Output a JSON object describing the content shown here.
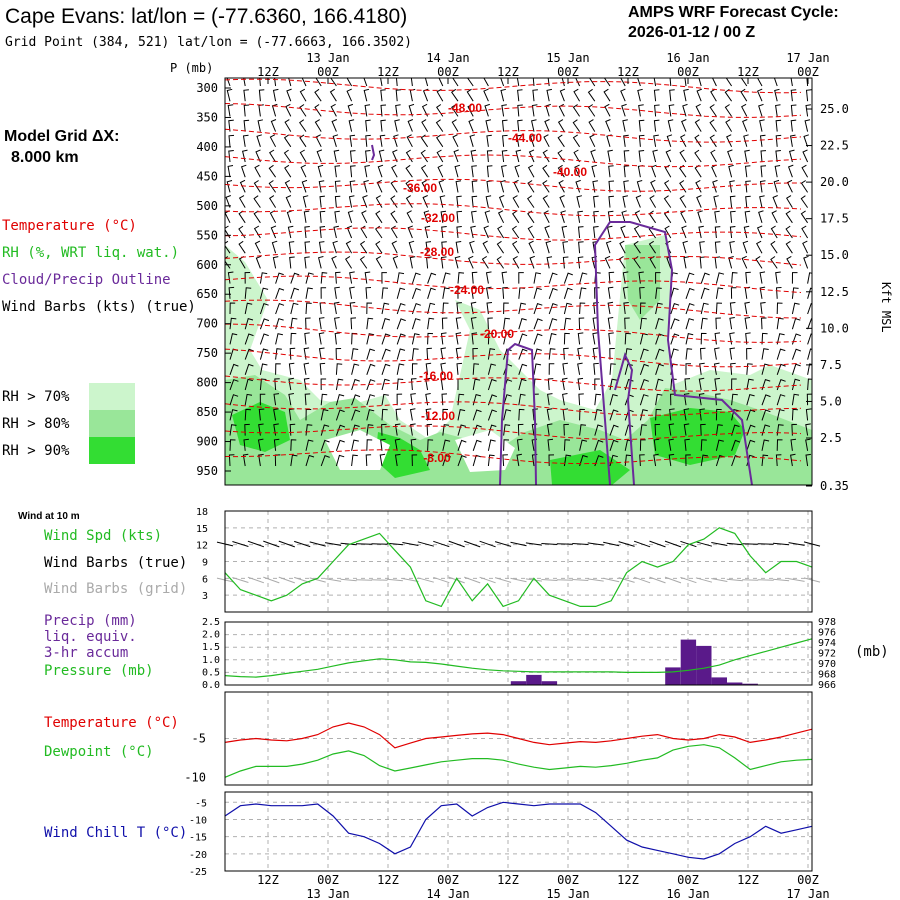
{
  "header": {
    "title": "Cape Evans:  lat/lon = (-77.6360, 166.4180)",
    "grid_point": "Grid Point (384, 521) lat/lon = (-77.6663, 166.3502)",
    "cycle_label": "AMPS WRF Forecast Cycle:",
    "cycle_value": "2026-01-12 / 00  Z"
  },
  "left_panel": {
    "model_grid_line1": "Model Grid ΔX:",
    "model_grid_line2": "8.000 km",
    "legend_temperature": "Temperature (°C)",
    "legend_rh": "RH (%, WRT liq. wat.)",
    "legend_cloud": "Cloud/Precip Outline",
    "legend_wind": "Wind Barbs (kts) (true)",
    "rh_gt70": "RH > 70%",
    "rh_gt80": "RH > 80%",
    "rh_gt90": "RH > 90%"
  },
  "time_axis": {
    "top_labels": [
      {
        "hour": "12Z",
        "date": ""
      },
      {
        "hour": "00Z",
        "date": "13 Jan"
      },
      {
        "hour": "12Z",
        "date": ""
      },
      {
        "hour": "00Z",
        "date": "14 Jan"
      },
      {
        "hour": "12Z",
        "date": ""
      },
      {
        "hour": "00Z",
        "date": "15 Jan"
      },
      {
        "hour": "12Z",
        "date": ""
      },
      {
        "hour": "00Z",
        "date": "16 Jan"
      },
      {
        "hour": "12Z",
        "date": ""
      },
      {
        "hour": "00Z",
        "date": "17 Jan"
      }
    ]
  },
  "colors": {
    "temperature": "#e00000",
    "rh70": "#ccf5cc",
    "rh80": "#99e699",
    "rh90": "#33dd33",
    "cloud": "#6a2a9a",
    "wind_speed": "#22bb22",
    "wind_grid": "#aaaaaa",
    "precip": "#5a1a8a",
    "pressure": "#22bb22",
    "dewpoint": "#22bb22",
    "windchill": "#1010aa"
  },
  "chart_data": [
    {
      "type": "contour",
      "name": "cross-section",
      "ylabel_left": "P (mb)",
      "ylabel_right": "Kft MSL",
      "pressure_ticks": [
        "300",
        "350",
        "400",
        "450",
        "500",
        "550",
        "600",
        "650",
        "700",
        "750",
        "800",
        "850",
        "900",
        "950"
      ],
      "kft_ticks": [
        "25.0",
        "22.5",
        "20.0",
        "17.5",
        "15.0",
        "12.5",
        "10.0",
        "7.5",
        "5.0",
        "2.5",
        "0.35"
      ],
      "temperature_contours": [
        "-48.00",
        "-44.00",
        "-40.00",
        "-36.00",
        "-32.00",
        "-28.00",
        "-24.00",
        "-20.00",
        "-16.00",
        "-12.00",
        "-8.00"
      ]
    },
    {
      "type": "line",
      "name": "wind-10m",
      "title": "Wind at 10 m",
      "labels": [
        "Wind Spd (kts)",
        "Wind Barbs (true)",
        "Wind Barbs (grid)"
      ],
      "yticks": [
        "18",
        "15",
        "12",
        "9",
        "6",
        "3"
      ],
      "ylim": [
        0,
        18
      ],
      "wind_speed": [
        7,
        4,
        3,
        2,
        3,
        5,
        6,
        9,
        12,
        13,
        14,
        11,
        8,
        2,
        1,
        6,
        2,
        5,
        1,
        2,
        6,
        3,
        2,
        1,
        1,
        2,
        7,
        9,
        8,
        9,
        12,
        13,
        15,
        14,
        10,
        7,
        9,
        9,
        8
      ]
    },
    {
      "type": "bar",
      "name": "precip-pressure",
      "labels": [
        "Precip (mm)",
        "liq. equiv.",
        "3-hr accum",
        "Pressure (mb)"
      ],
      "right_unit": "(mb)",
      "yticks_left": [
        "2.5",
        "2.0",
        "1.5",
        "1.0",
        "0.5",
        "0.0"
      ],
      "yticks_right": [
        "978",
        "976",
        "974",
        "972",
        "970",
        "968",
        "966"
      ],
      "ylim_left": [
        0,
        2.5
      ],
      "ylim_right": [
        966,
        978
      ],
      "precip": [
        0,
        0,
        0,
        0,
        0,
        0,
        0,
        0,
        0,
        0,
        0,
        0,
        0,
        0,
        0,
        0,
        0,
        0,
        0,
        0.15,
        0.4,
        0.15,
        0,
        0,
        0,
        0,
        0,
        0,
        0,
        0.7,
        1.8,
        1.55,
        0.3,
        0.1,
        0.05,
        0,
        0,
        0,
        0
      ],
      "pressure": [
        967.8,
        967.6,
        967.5,
        967.8,
        968.2,
        968.6,
        969.0,
        969.6,
        970.2,
        970.6,
        971.0,
        970.8,
        970.4,
        970.3,
        970.0,
        969.6,
        969.2,
        968.9,
        968.7,
        968.6,
        968.5,
        968.5,
        968.5,
        968.5,
        968.5,
        968.5,
        968.4,
        968.4,
        968.4,
        968.5,
        968.8,
        969.2,
        969.8,
        970.8,
        971.6,
        972.4,
        973.2,
        974.0,
        974.8
      ]
    },
    {
      "type": "line",
      "name": "temperature-dewpoint",
      "labels": [
        "Temperature (°C)",
        "Dewpoint (°C)"
      ],
      "yticks": [
        "-5",
        "-10"
      ],
      "ylim": [
        -11,
        1
      ],
      "temperature": [
        -5.5,
        -5.2,
        -5.0,
        -5.2,
        -5.3,
        -5.0,
        -4.5,
        -3.5,
        -3.0,
        -3.5,
        -4.5,
        -6.2,
        -5.6,
        -5.0,
        -4.8,
        -4.6,
        -4.4,
        -4.3,
        -4.5,
        -5.0,
        -5.5,
        -5.8,
        -5.6,
        -5.4,
        -5.5,
        -5.3,
        -5.0,
        -4.7,
        -4.5,
        -5.0,
        -5.2,
        -5.0,
        -4.5,
        -4.8,
        -5.5,
        -5.2,
        -4.8,
        -4.3,
        -3.8
      ],
      "dewpoint": [
        -10.0,
        -9.2,
        -8.6,
        -8.6,
        -8.6,
        -8.3,
        -7.8,
        -7.0,
        -6.6,
        -7.2,
        -8.5,
        -9.2,
        -8.8,
        -8.4,
        -8.0,
        -7.8,
        -7.6,
        -7.6,
        -7.8,
        -8.3,
        -8.7,
        -9.0,
        -8.8,
        -8.6,
        -8.7,
        -8.5,
        -8.2,
        -7.8,
        -7.5,
        -6.5,
        -6.0,
        -5.8,
        -6.2,
        -7.5,
        -9.0,
        -8.5,
        -8.0,
        -7.8,
        -7.7
      ]
    },
    {
      "type": "line",
      "name": "wind-chill",
      "labels": [
        "Wind Chill T (°C)"
      ],
      "yticks": [
        "-5",
        "-10",
        "-15",
        "-20",
        "-25"
      ],
      "ylim": [
        -25,
        -2
      ],
      "wind_chill": [
        -9,
        -6,
        -5.5,
        -6,
        -6,
        -6,
        -5.5,
        -9,
        -14,
        -15,
        -17,
        -20,
        -18,
        -10,
        -6,
        -5.5,
        -9,
        -6.5,
        -5,
        -5.5,
        -6,
        -5.5,
        -5.5,
        -5.5,
        -8,
        -12,
        -16,
        -18,
        -19,
        -20,
        -21,
        -21.5,
        -20,
        -17,
        -15,
        -12,
        -14,
        -13,
        -12
      ]
    }
  ]
}
